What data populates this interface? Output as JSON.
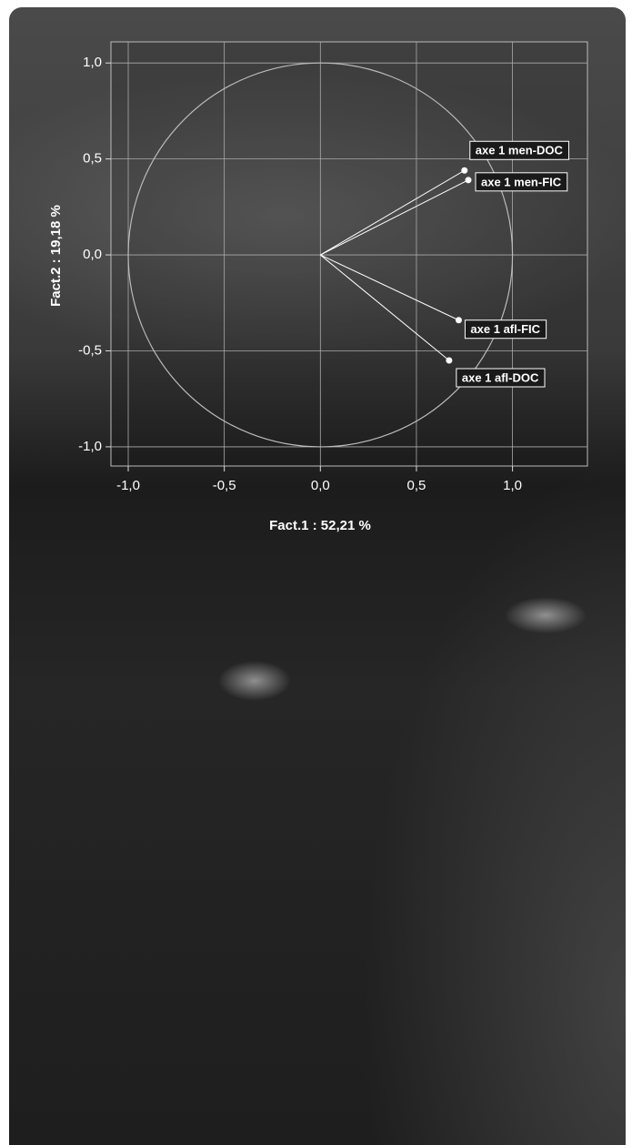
{
  "chart_data": {
    "type": "scatter",
    "x_label": "Fact.1 : 52,21 %",
    "y_label": "Fact.2 : 19,18 %",
    "xlim": [
      -1.09,
      1.39
    ],
    "ylim": [
      -1.1,
      1.11
    ],
    "xticks": [
      {
        "value": -1,
        "label": "-1,0"
      },
      {
        "value": -0.5,
        "label": "-0,5"
      },
      {
        "value": 0,
        "label": "0,0"
      },
      {
        "value": 0.5,
        "label": "0,5"
      },
      {
        "value": 1,
        "label": "1,0"
      }
    ],
    "yticks": [
      {
        "value": -1,
        "label": "-1,0"
      },
      {
        "value": -0.5,
        "label": "-0,5"
      },
      {
        "value": 0,
        "label": "0,0"
      },
      {
        "value": 0.5,
        "label": "0,5"
      },
      {
        "value": 1,
        "label": "1,0"
      }
    ],
    "grid": true,
    "unit_circle_radius": 1,
    "color": "#ffffff",
    "points": [
      {
        "label": "axe 1 men-DOC",
        "x": 0.75,
        "y": 0.44
      },
      {
        "label": "axe 1 men-FIC",
        "x": 0.77,
        "y": 0.39
      },
      {
        "label": "axe 1 afl-FIC",
        "x": 0.72,
        "y": -0.34
      },
      {
        "label": "axe 1 afl-DOC",
        "x": 0.67,
        "y": -0.55
      }
    ]
  }
}
